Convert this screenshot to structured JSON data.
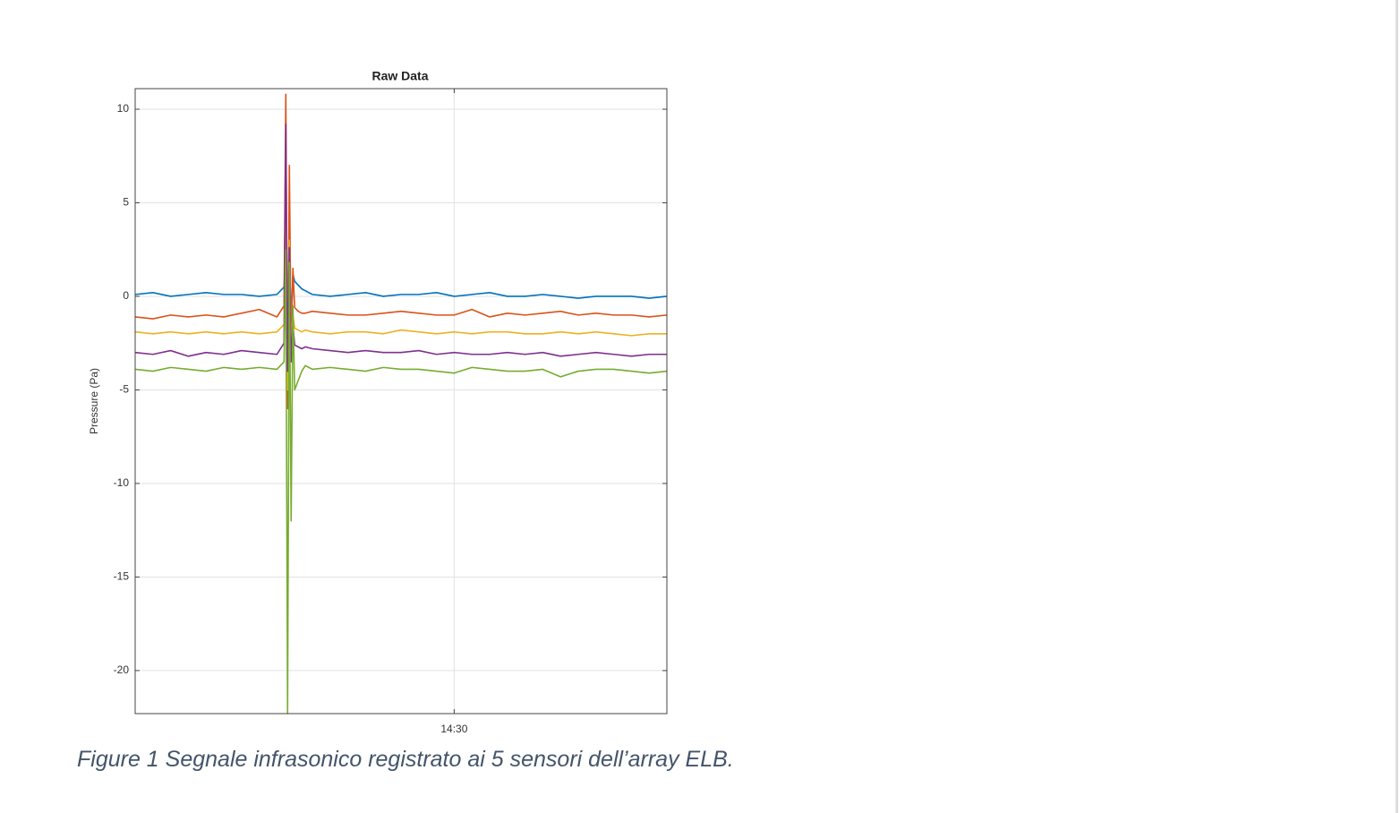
{
  "chart_data": {
    "type": "line",
    "title": "Raw Data",
    "y_label": "Pressure (Pa)",
    "x": [
      861,
      861.5,
      862,
      862.5,
      863,
      863.5,
      864,
      864.5,
      865,
      865.2,
      865.25,
      865.3,
      865.35,
      865.4,
      865.45,
      865.5,
      865.6,
      865.7,
      865.8,
      866,
      866.5,
      867,
      867.5,
      868,
      868.5,
      869,
      869.5,
      870,
      870.5,
      871,
      871.5,
      872,
      872.5,
      873,
      873.5,
      874,
      874.5,
      875,
      875.5,
      876
    ],
    "series": [
      {
        "color": "#0072bd",
        "values": [
          0.1,
          0.2,
          0.0,
          0.1,
          0.2,
          0.1,
          0.1,
          0.0,
          0.1,
          0.5,
          2.5,
          -3,
          2,
          -1.5,
          1.2,
          0.8,
          0.6,
          0.4,
          0.3,
          0.1,
          0.0,
          0.1,
          0.2,
          0.0,
          0.1,
          0.1,
          0.2,
          0.0,
          0.1,
          0.2,
          0.0,
          0.0,
          0.1,
          0.0,
          -0.1,
          0.0,
          0.0,
          0.0,
          -0.1,
          0.0
        ]
      },
      {
        "color": "#d95319",
        "values": [
          -1.1,
          -1.2,
          -1.0,
          -1.1,
          -1.0,
          -1.1,
          -0.9,
          -0.7,
          -1.1,
          -0.5,
          10.8,
          -6,
          7,
          -3,
          1.5,
          -0.6,
          -0.8,
          -0.9,
          -0.9,
          -0.8,
          -0.9,
          -1.0,
          -1.0,
          -0.9,
          -0.8,
          -0.9,
          -1.0,
          -1.0,
          -0.7,
          -1.1,
          -0.9,
          -1.0,
          -0.9,
          -0.8,
          -1.0,
          -0.9,
          -1.0,
          -1.0,
          -1.1,
          -1.0
        ]
      },
      {
        "color": "#edb120",
        "values": [
          -1.9,
          -2.0,
          -1.9,
          -2.0,
          -1.9,
          -2.0,
          -1.9,
          -2.0,
          -1.9,
          -1.5,
          6,
          -5,
          3,
          -2.5,
          -1.0,
          -1.7,
          -1.8,
          -1.9,
          -1.8,
          -1.9,
          -2.0,
          -1.9,
          -1.9,
          -2.0,
          -1.8,
          -1.9,
          -2.0,
          -1.9,
          -2.0,
          -1.9,
          -1.9,
          -2.0,
          -2.0,
          -1.9,
          -2.0,
          -1.9,
          -2.0,
          -2.1,
          -2.0,
          -2.0
        ]
      },
      {
        "color": "#7e2f8e",
        "values": [
          -3.0,
          -3.1,
          -2.9,
          -3.2,
          -3.0,
          -3.1,
          -2.9,
          -3.0,
          -3.1,
          -2.5,
          9.2,
          -4,
          2.6,
          -3.5,
          -1.5,
          -2.6,
          -2.7,
          -2.8,
          -2.7,
          -2.8,
          -2.9,
          -3.0,
          -2.9,
          -3.0,
          -3.0,
          -2.9,
          -3.1,
          -3.0,
          -3.1,
          -3.1,
          -3.0,
          -3.1,
          -3.0,
          -3.2,
          -3.1,
          -3.0,
          -3.1,
          -3.2,
          -3.1,
          -3.1
        ]
      },
      {
        "color": "#77ac30",
        "values": [
          -3.9,
          -4.0,
          -3.8,
          -3.9,
          -4.0,
          -3.8,
          -3.9,
          -3.8,
          -3.9,
          -3.5,
          2.5,
          -22.3,
          1.8,
          -12,
          -0.5,
          -5,
          -4.5,
          -4.0,
          -3.7,
          -3.9,
          -3.8,
          -3.9,
          -4.0,
          -3.8,
          -3.9,
          -3.9,
          -4.0,
          -4.1,
          -3.8,
          -3.9,
          -4.0,
          -4.0,
          -3.9,
          -4.3,
          -4.0,
          -3.9,
          -3.9,
          -4.0,
          -4.1,
          -4.0
        ]
      }
    ],
    "xlim": [
      861,
      876
    ],
    "xticks": [
      {
        "value": 870,
        "label": "14:30"
      }
    ],
    "ylim": [
      -22.3,
      11.1
    ],
    "yticks": [
      -20,
      -15,
      -10,
      -5,
      0,
      5,
      10
    ],
    "grid": true
  },
  "caption": "Figure 1 Segnale infrasonico registrato ai 5 sensori dell’array ELB."
}
